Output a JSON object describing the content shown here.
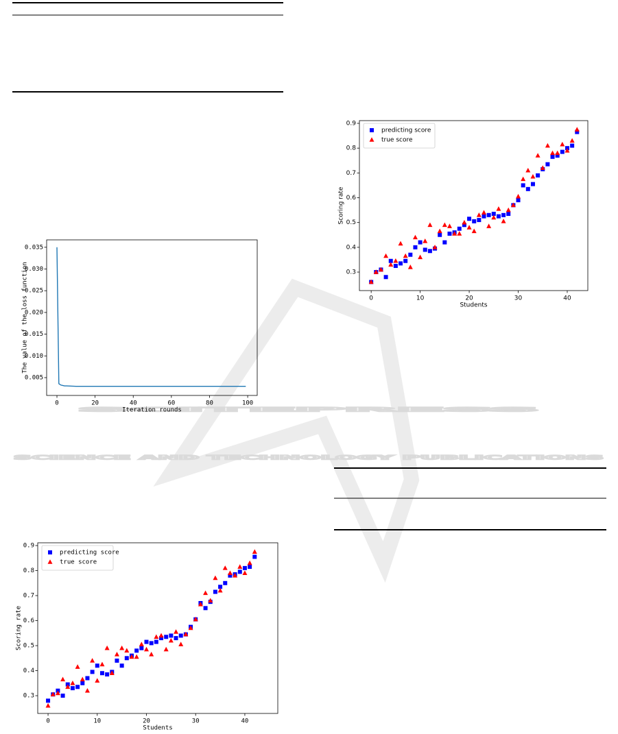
{
  "watermark": {
    "title": "SCITEPRESS",
    "subtitle": "SCIENCE AND TECHNOLOGY PUBLICATIONS"
  },
  "chart_data": [
    {
      "type": "line",
      "xlabel": "Iteration rounds",
      "ylabel": "The value of the loss function",
      "x": [
        0,
        1,
        2,
        3,
        4,
        5,
        10,
        20,
        30,
        40,
        50,
        60,
        70,
        80,
        90,
        99
      ],
      "series": [
        {
          "name": "loss",
          "color": "#1f77b4",
          "values": [
            0.035,
            0.0036,
            0.0033,
            0.0032,
            0.0031,
            0.0031,
            0.003,
            0.003,
            0.003,
            0.003,
            0.003,
            0.003,
            0.003,
            0.003,
            0.003,
            0.003
          ]
        }
      ],
      "xlim": [
        -5.4,
        105
      ],
      "xticks": [
        0,
        20,
        40,
        60,
        80,
        100
      ],
      "ylim": [
        0.0009,
        0.0367
      ],
      "yticks": [
        0.005,
        {
          "value": 0.01,
          "label": "0.010"
        },
        0.015,
        {
          "value": 0.02,
          "label": "0.020"
        },
        0.025,
        {
          "value": 0.03,
          "label": "0.030"
        },
        0.035
      ],
      "legend": false
    },
    {
      "type": "scatter",
      "xlabel": "Students",
      "ylabel": "Scoring rate",
      "x": [
        0,
        1,
        2,
        3,
        4,
        5,
        6,
        7,
        8,
        9,
        10,
        11,
        12,
        13,
        14,
        15,
        16,
        17,
        18,
        19,
        20,
        21,
        22,
        23,
        24,
        25,
        26,
        27,
        28,
        29,
        30,
        31,
        32,
        33,
        34,
        35,
        36,
        37,
        38,
        39,
        40,
        41,
        42
      ],
      "series": [
        {
          "name": "predicting score",
          "color": "#0000ff",
          "marker": "square",
          "values": [
            0.26,
            0.3,
            0.31,
            0.28,
            0.345,
            0.325,
            0.335,
            0.345,
            0.37,
            0.4,
            0.42,
            0.39,
            0.385,
            0.395,
            0.45,
            0.42,
            0.455,
            0.46,
            0.475,
            0.49,
            0.515,
            0.505,
            0.51,
            0.525,
            0.53,
            0.535,
            0.525,
            0.53,
            0.535,
            0.57,
            0.59,
            0.65,
            0.635,
            0.655,
            0.69,
            0.715,
            0.735,
            0.765,
            0.77,
            0.785,
            0.8,
            0.81,
            0.865
          ]
        },
        {
          "name": "true score",
          "color": "#ff0000",
          "marker": "triangle",
          "values": [
            0.26,
            0.3,
            0.31,
            0.365,
            0.33,
            0.345,
            0.415,
            0.365,
            0.32,
            0.44,
            0.36,
            0.425,
            0.49,
            0.4,
            0.465,
            0.49,
            0.485,
            0.455,
            0.455,
            0.5,
            0.48,
            0.465,
            0.53,
            0.54,
            0.485,
            0.52,
            0.555,
            0.505,
            0.55,
            0.57,
            0.605,
            0.675,
            0.71,
            0.685,
            0.77,
            0.72,
            0.81,
            0.78,
            0.78,
            0.815,
            0.79,
            0.83,
            0.875
          ]
        }
      ],
      "xlim": [
        -2.4,
        44.2
      ],
      "xticks": [
        0,
        10,
        20,
        30,
        40
      ],
      "ylim": [
        0.2254,
        0.911
      ],
      "yticks": [
        0.3,
        0.4,
        0.5,
        0.6,
        0.7,
        0.8,
        0.9
      ],
      "legend": "upper left"
    },
    {
      "type": "scatter",
      "xlabel": "Students",
      "ylabel": "Scoring rate",
      "x": [
        0,
        1,
        2,
        3,
        4,
        5,
        6,
        7,
        8,
        9,
        10,
        11,
        12,
        13,
        14,
        15,
        16,
        17,
        18,
        19,
        20,
        21,
        22,
        23,
        24,
        25,
        26,
        27,
        28,
        29,
        30,
        31,
        32,
        33,
        34,
        35,
        36,
        37,
        38,
        39,
        40,
        41,
        42
      ],
      "series": [
        {
          "name": "predicting score",
          "color": "#0000ff",
          "marker": "square",
          "values": [
            0.28,
            0.305,
            0.32,
            0.3,
            0.345,
            0.33,
            0.335,
            0.35,
            0.37,
            0.395,
            0.42,
            0.39,
            0.385,
            0.395,
            0.44,
            0.42,
            0.45,
            0.46,
            0.48,
            0.49,
            0.515,
            0.51,
            0.515,
            0.53,
            0.535,
            0.54,
            0.53,
            0.54,
            0.545,
            0.575,
            0.605,
            0.67,
            0.65,
            0.675,
            0.715,
            0.735,
            0.75,
            0.78,
            0.785,
            0.795,
            0.81,
            0.815,
            0.855
          ]
        },
        {
          "name": "true score",
          "color": "#ff0000",
          "marker": "triangle",
          "values": [
            0.26,
            0.305,
            0.31,
            0.365,
            0.335,
            0.35,
            0.415,
            0.365,
            0.32,
            0.44,
            0.36,
            0.425,
            0.49,
            0.39,
            0.465,
            0.49,
            0.48,
            0.455,
            0.455,
            0.505,
            0.485,
            0.465,
            0.535,
            0.54,
            0.485,
            0.52,
            0.555,
            0.505,
            0.545,
            0.57,
            0.605,
            0.665,
            0.71,
            0.68,
            0.77,
            0.72,
            0.81,
            0.79,
            0.78,
            0.815,
            0.79,
            0.83,
            0.875
          ]
        }
      ],
      "xlim": [
        -2.1,
        46.7
      ],
      "xticks": [
        0,
        10,
        20,
        30,
        40
      ],
      "ylim": [
        0.229,
        0.911
      ],
      "yticks": [
        0.3,
        0.4,
        0.5,
        0.6,
        0.7,
        0.8,
        0.9
      ],
      "legend": "upper left"
    }
  ]
}
